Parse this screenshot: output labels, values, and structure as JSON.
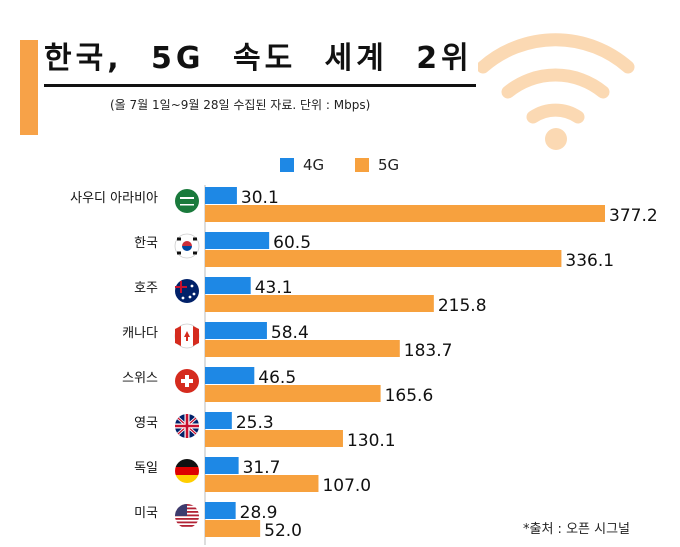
{
  "header": {
    "title": "한국, 5G 속도 세계 2위",
    "subtitle": "(올 7월 1일~9월 28일 수집된 자료. 단위 : Mbps)"
  },
  "footer": {
    "source": "*출처 : 오픈 시그널"
  },
  "colors": {
    "4G": "#1e88e5",
    "5G": "#f7a13e",
    "accent": "#f7a248"
  },
  "chart_data": {
    "type": "bar",
    "orientation": "horizontal",
    "categories": [
      "사우디 아라비아",
      "한국",
      "호주",
      "캐나다",
      "스위스",
      "영국",
      "독일",
      "미국"
    ],
    "flags": [
      "saudi-arabia",
      "south-korea",
      "australia",
      "canada",
      "switzerland",
      "united-kingdom",
      "germany",
      "united-states"
    ],
    "series": [
      {
        "name": "4G",
        "values": [
          30.1,
          60.5,
          43.1,
          58.4,
          46.5,
          25.3,
          31.7,
          28.9
        ]
      },
      {
        "name": "5G",
        "values": [
          377.2,
          336.1,
          215.8,
          183.7,
          165.6,
          130.1,
          107.0,
          52.0
        ]
      }
    ],
    "value_labels": [
      [
        "30.1",
        "60.5",
        "43.1",
        "58.4",
        "46.5",
        "25.3",
        "31.7",
        "28.9"
      ],
      [
        "377.2",
        "336.1",
        "215.8",
        "183.7",
        "165.6",
        "130.1",
        "107.0",
        "52.0"
      ]
    ],
    "legend": "top",
    "grid": false
  }
}
